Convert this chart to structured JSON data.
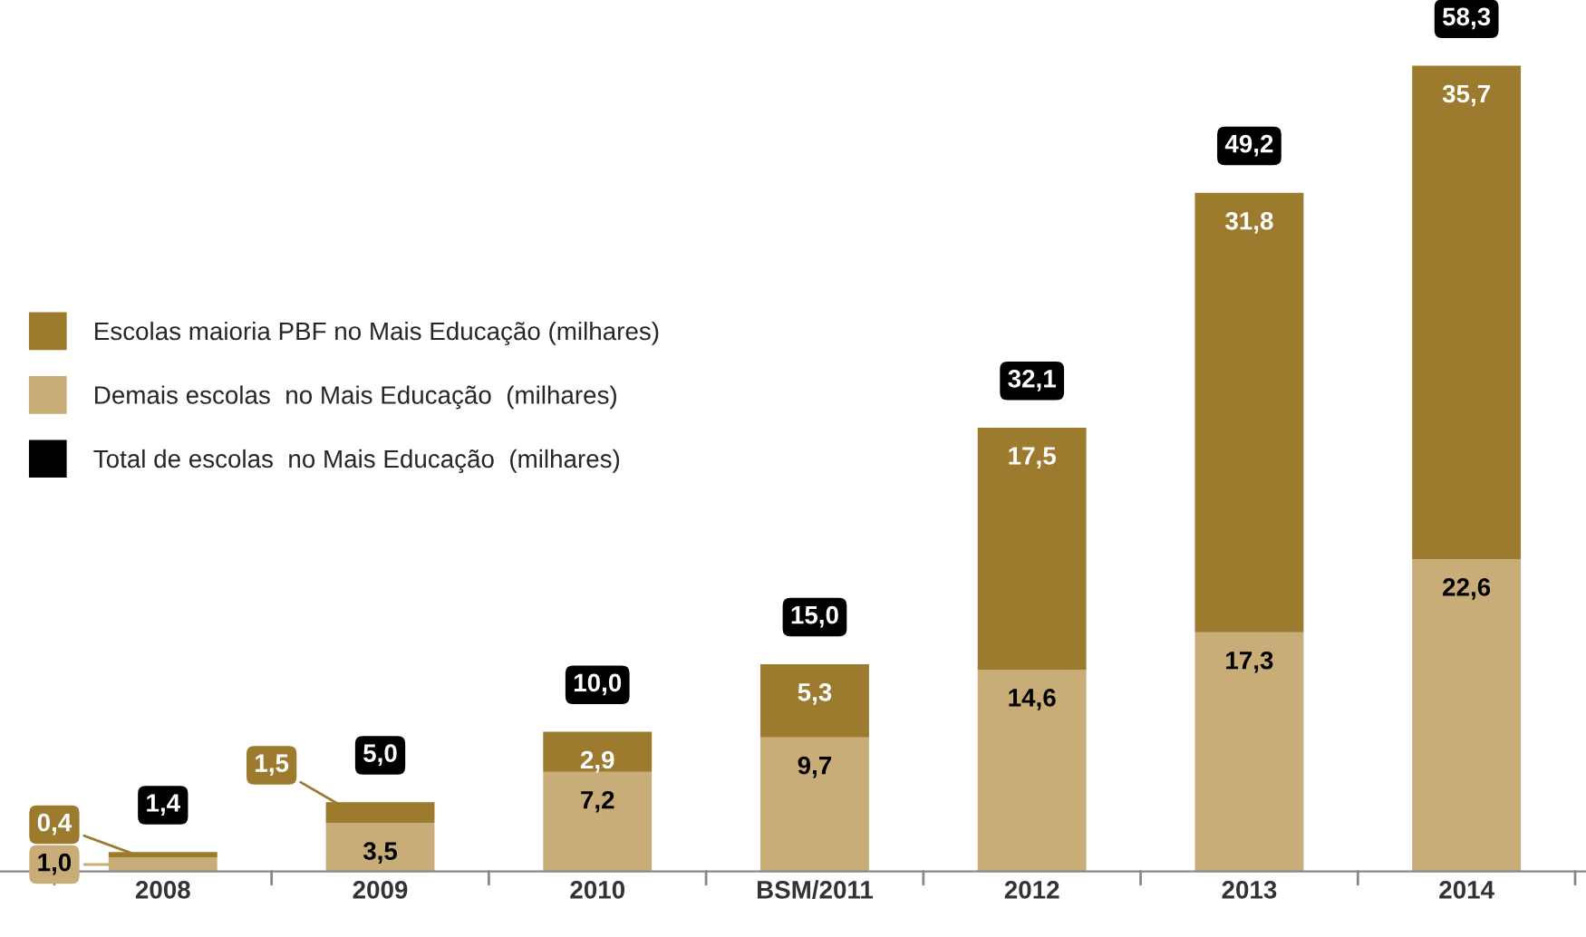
{
  "chart_data": {
    "type": "bar",
    "stacked": true,
    "categories": [
      "2008",
      "2009",
      "2010",
      "BSM/2011",
      "2012",
      "2013",
      "2014"
    ],
    "series": [
      {
        "name": "Demais escolas  no Mais Educação  (milhares)",
        "color": "#c9ad78",
        "values": [
          1.0,
          3.5,
          7.2,
          9.7,
          14.6,
          17.3,
          22.6
        ],
        "value_labels": [
          "1,0",
          "3,5",
          "7,2",
          "9,7",
          "14,6",
          "17,3",
          "22,6"
        ]
      },
      {
        "name": "Escolas maioria PBF no Mais Educação (milhares)",
        "color": "#9c7a2e",
        "values": [
          0.4,
          1.5,
          2.9,
          5.3,
          17.5,
          31.8,
          35.7
        ],
        "value_labels": [
          "0,4",
          "1,5",
          "2,9",
          "5,3",
          "17,5",
          "31,8",
          "35,7"
        ]
      }
    ],
    "totals": [
      "1,4",
      "5,0",
      "10,0",
      "15,0",
      "32,1",
      "49,2",
      "58,3"
    ],
    "annotations": [
      "Total de escolas  no Mais Educação  (milhares)"
    ],
    "tick_labels": "x",
    "legend": "left",
    "grid": false
  }
}
